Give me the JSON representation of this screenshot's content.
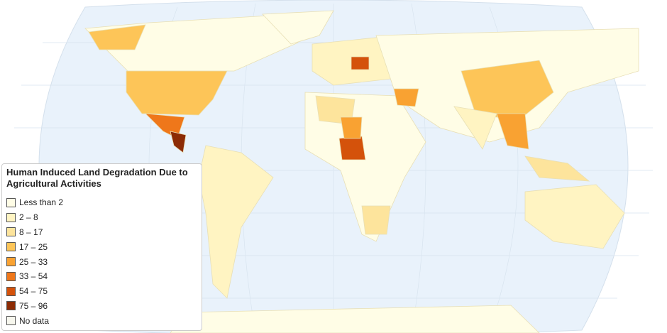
{
  "legend": {
    "title": "Human Induced Land Degradation Due to Agricultural Activities",
    "items": [
      {
        "label": "Less than 2",
        "color": "#fffde6"
      },
      {
        "label": "2 – 8",
        "color": "#fff4c2"
      },
      {
        "label": "8 – 17",
        "color": "#fde49c"
      },
      {
        "label": "17 – 25",
        "color": "#fdc558"
      },
      {
        "label": "25 – 33",
        "color": "#f9a232"
      },
      {
        "label": "33 – 54",
        "color": "#ef771a"
      },
      {
        "label": "54 – 75",
        "color": "#d4520b"
      },
      {
        "label": "75 – 96",
        "color": "#8c2b05"
      },
      {
        "label": "No data",
        "color": "#f7f7ee"
      }
    ]
  }
}
